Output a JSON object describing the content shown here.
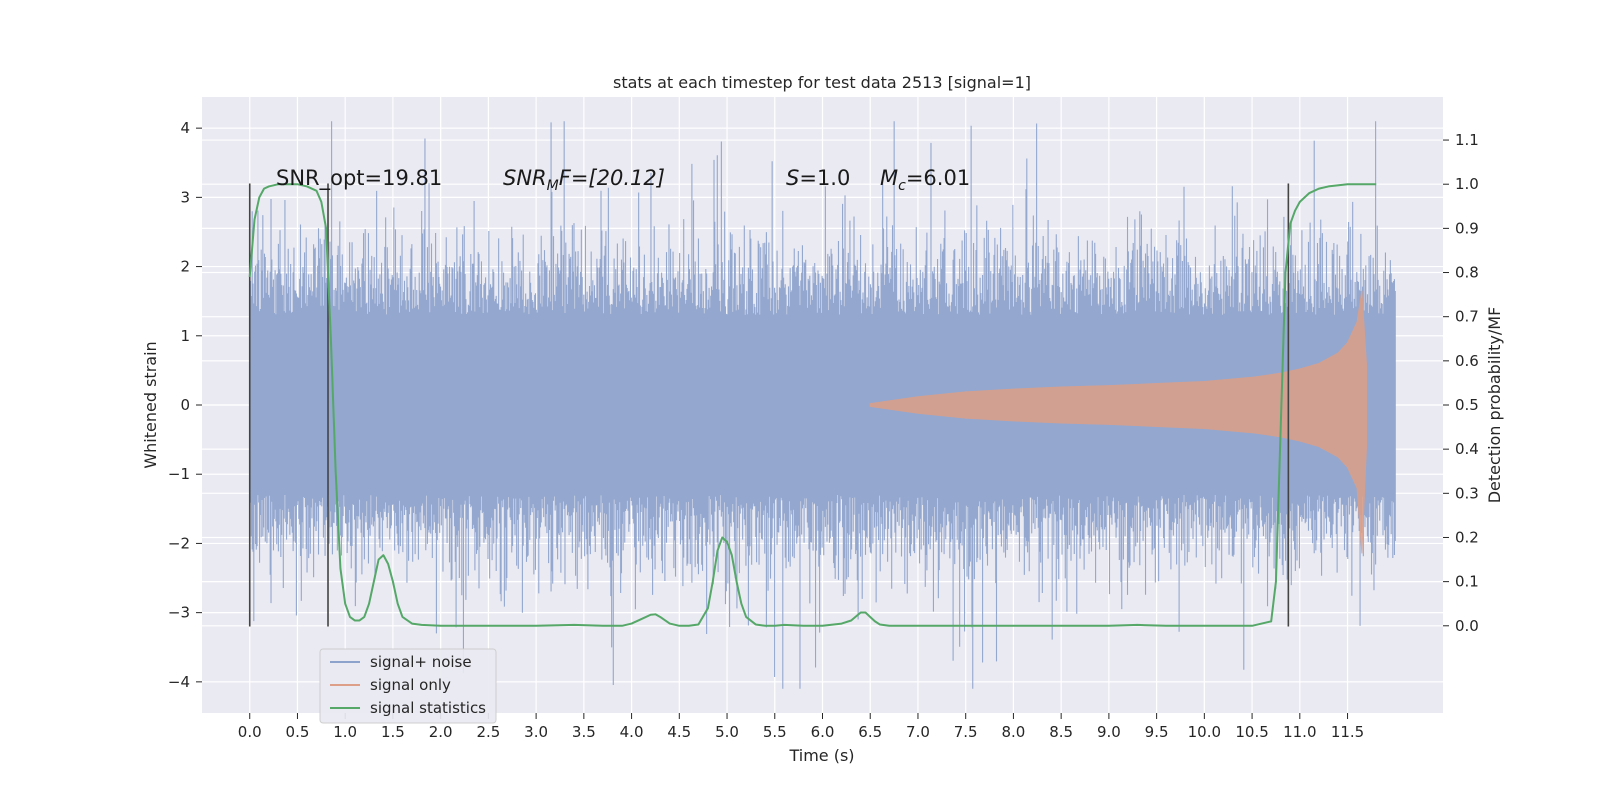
{
  "chart_data": {
    "type": "line",
    "title": "stats at each timestep for test data 2513 [signal=1]",
    "xlabel": "Time (s)",
    "ylabel": "Whitened strain",
    "y2label": "Detection probability/MF",
    "xlim": [
      -0.5,
      12.5
    ],
    "ylim": [
      -4.45,
      4.45
    ],
    "y2lim": [
      -0.1975,
      1.1975
    ],
    "x_ticks": [
      "0.0",
      "0.5",
      "1.0",
      "1.5",
      "2.0",
      "2.5",
      "3.0",
      "3.5",
      "4.0",
      "4.5",
      "5.0",
      "5.5",
      "6.0",
      "6.5",
      "7.0",
      "7.5",
      "8.0",
      "8.5",
      "9.0",
      "9.5",
      "10.0",
      "10.5",
      "11.0",
      "11.5"
    ],
    "y_ticks": [
      "−4",
      "−3",
      "−2",
      "−1",
      "0",
      "1",
      "2",
      "3",
      "4"
    ],
    "y2_ticks": [
      "0.0",
      "0.1",
      "0.2",
      "0.3",
      "0.4",
      "0.5",
      "0.6",
      "0.7",
      "0.8",
      "0.9",
      "1.0",
      "1.1"
    ],
    "grid": true,
    "legend_position": "lower-left",
    "annotations": {
      "snr_opt": "SNR_opt=19.81",
      "snr_mf_base": "SNR",
      "snr_mf_sub": "M",
      "snr_mf_tail": "F=[20.12]",
      "s_sym": "S",
      "s_val": "=1.0",
      "mc_sym": "M",
      "mc_sub": "c",
      "mc_val": "=6.01"
    },
    "series": [
      {
        "name": "signal+ noise",
        "color": "#8ea3cc",
        "x_range": [
          0,
          12
        ],
        "core_amplitude": 1.3,
        "spike_max": 4.1,
        "spike_min": -4.1
      },
      {
        "name": "signal only",
        "color": "#dd9f87",
        "x": [
          6.5,
          7.0,
          7.5,
          8.0,
          8.5,
          9.0,
          9.5,
          10.0,
          10.5,
          10.8,
          11.0,
          11.2,
          11.4,
          11.5,
          11.6,
          11.65,
          11.7
        ],
        "envelope": [
          0.02,
          0.12,
          0.19,
          0.23,
          0.26,
          0.28,
          0.31,
          0.34,
          0.4,
          0.46,
          0.52,
          0.6,
          0.75,
          0.9,
          1.2,
          1.65,
          0.55
        ]
      },
      {
        "name": "signal statistics",
        "color": "#55a868",
        "x": [
          0.0,
          0.05,
          0.1,
          0.15,
          0.2,
          0.3,
          0.4,
          0.5,
          0.6,
          0.7,
          0.75,
          0.8,
          0.85,
          0.9,
          0.95,
          1.0,
          1.05,
          1.1,
          1.15,
          1.2,
          1.25,
          1.3,
          1.35,
          1.4,
          1.45,
          1.5,
          1.55,
          1.6,
          1.7,
          1.8,
          2.0,
          3.0,
          3.4,
          3.7,
          3.9,
          4.0,
          4.1,
          4.2,
          4.25,
          4.3,
          4.4,
          4.5,
          4.6,
          4.7,
          4.8,
          4.85,
          4.9,
          4.95,
          5.0,
          5.05,
          5.1,
          5.15,
          5.2,
          5.3,
          5.4,
          5.5,
          5.6,
          5.8,
          6.0,
          6.2,
          6.3,
          6.4,
          6.45,
          6.5,
          6.55,
          6.6,
          6.7,
          6.8,
          7.0,
          8.0,
          9.0,
          9.3,
          9.6,
          10.0,
          10.5,
          10.7,
          10.75,
          10.8,
          10.85,
          10.9,
          10.95,
          11.0,
          11.1,
          11.2,
          11.3,
          11.5,
          11.7,
          11.8
        ],
        "y": [
          0.79,
          0.92,
          0.97,
          0.99,
          0.995,
          1.0,
          1.0,
          1.0,
          0.995,
          0.985,
          0.96,
          0.9,
          0.65,
          0.35,
          0.13,
          0.05,
          0.02,
          0.012,
          0.012,
          0.02,
          0.05,
          0.1,
          0.15,
          0.16,
          0.14,
          0.1,
          0.05,
          0.02,
          0.005,
          0.002,
          0.0,
          0.0,
          0.002,
          0.0,
          0.0,
          0.005,
          0.015,
          0.025,
          0.026,
          0.02,
          0.005,
          0.0,
          0.0,
          0.003,
          0.04,
          0.1,
          0.17,
          0.2,
          0.19,
          0.16,
          0.1,
          0.05,
          0.02,
          0.003,
          0.0,
          0.0,
          0.002,
          0.0,
          0.0,
          0.005,
          0.012,
          0.03,
          0.03,
          0.02,
          0.01,
          0.003,
          0.0,
          0.0,
          0.0,
          0.0,
          0.0,
          0.002,
          0.0,
          0.0,
          0.0,
          0.01,
          0.1,
          0.45,
          0.8,
          0.91,
          0.94,
          0.96,
          0.98,
          0.99,
          0.995,
          1.0,
          1.0,
          1.0
        ]
      }
    ],
    "vertical_markers": [
      {
        "x": 0.0,
        "y_from": -3.2,
        "y_to": 3.2
      },
      {
        "x": 0.82,
        "y_from": -3.2,
        "y_to": 3.2
      },
      {
        "x": 10.88,
        "y_from": -3.2,
        "y_to": 3.2
      }
    ]
  }
}
